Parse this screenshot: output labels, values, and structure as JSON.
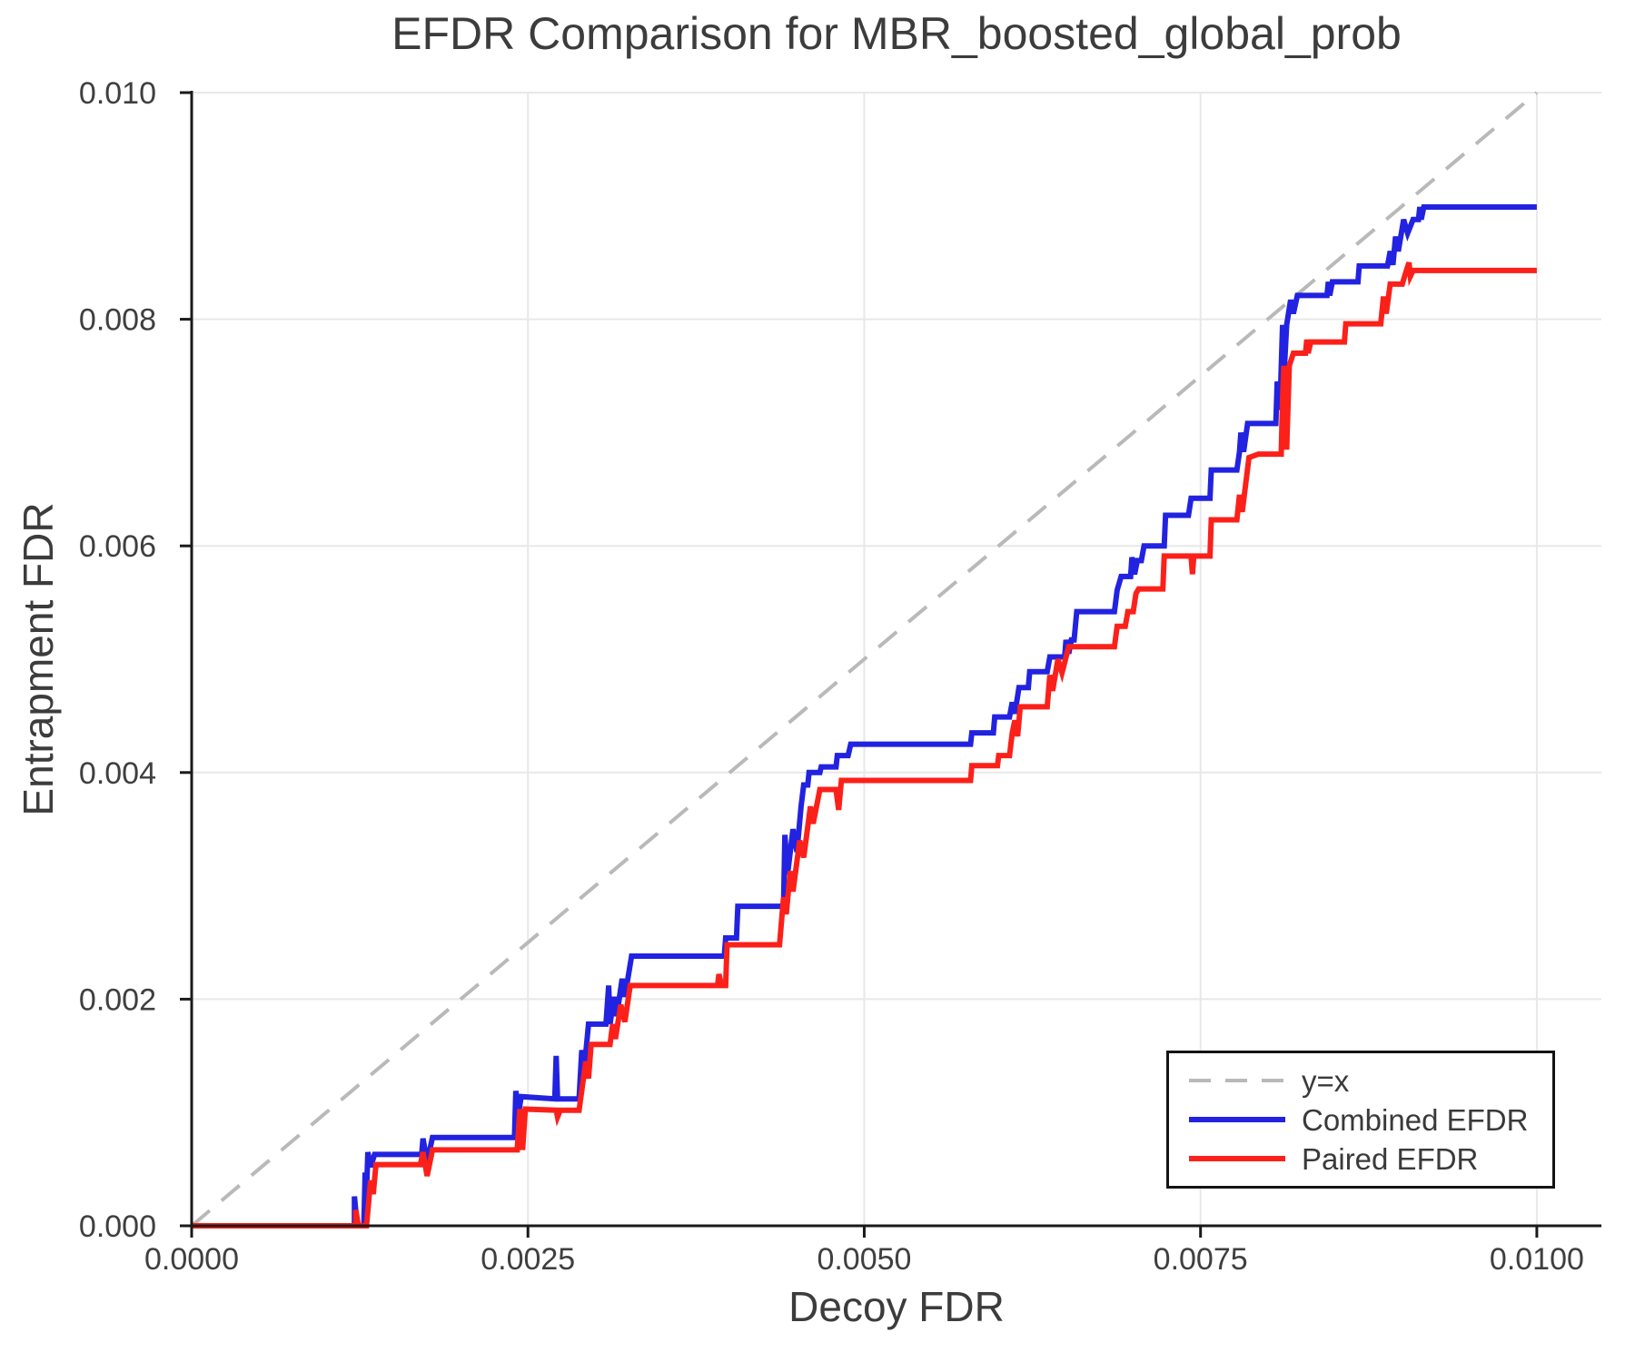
{
  "title": "EFDR Comparison for MBR_boosted_global_prob",
  "axes": {
    "xlabel": "Decoy FDR",
    "ylabel": "Entrapment FDR",
    "x_tick_labels": [
      "0.0000",
      "0.0025",
      "0.0050",
      "0.0075",
      "0.0100"
    ],
    "y_tick_labels": [
      "0.000",
      "0.002",
      "0.004",
      "0.006",
      "0.008",
      "0.010"
    ]
  },
  "legend": {
    "items": [
      {
        "label": "y=x",
        "style": "dashed",
        "color": "#b9b9b9"
      },
      {
        "label": "Combined EFDR",
        "style": "solid",
        "color": "#2222e1"
      },
      {
        "label": "Paired EFDR",
        "style": "solid",
        "color": "#fc201a"
      }
    ]
  },
  "colors": {
    "grid": "#e8e8e8",
    "spine": "#1a1a1a",
    "tick_text": "#3f3f3f",
    "diagonal": "#b9b9b9",
    "combined": "#2222e1",
    "paired": "#fc201a"
  },
  "chart_data": {
    "type": "line",
    "title": "EFDR Comparison for MBR_boosted_global_prob",
    "xlabel": "Decoy FDR",
    "ylabel": "Entrapment FDR",
    "value_unit": "1e-4 FDR (multiply plotted values by 0.0001)",
    "xlim": [
      0,
      104.8
    ],
    "ylim": [
      0,
      100
    ],
    "x_ticks": {
      "values": [
        0,
        25,
        50,
        75,
        100
      ],
      "labels": [
        "0.0000",
        "0.0025",
        "0.0050",
        "0.0075",
        "0.0100"
      ]
    },
    "y_ticks": {
      "values": [
        0,
        20,
        40,
        60,
        80,
        100
      ],
      "labels": [
        "0.000",
        "0.002",
        "0.004",
        "0.006",
        "0.008",
        "0.010"
      ]
    },
    "x_gridlines": [
      25,
      50,
      75,
      100
    ],
    "y_gridlines": [
      20,
      40,
      60,
      80,
      100
    ],
    "grid": true,
    "legend_position": "lower right",
    "series": [
      {
        "name": "y=x",
        "color": "#b9b9b9",
        "dash": true,
        "width": 4,
        "points": [
          [
            0,
            0
          ],
          [
            100,
            100
          ]
        ]
      },
      {
        "name": "Combined EFDR",
        "color": "#2222e1",
        "dash": false,
        "width": 6,
        "points": [
          [
            0,
            0
          ],
          [
            12.1,
            0
          ],
          [
            12.1,
            2.6
          ],
          [
            12.3,
            0
          ],
          [
            12.8,
            0
          ],
          [
            12.9,
            4.7
          ],
          [
            13.0,
            3.0
          ],
          [
            13.1,
            6.5
          ],
          [
            13.3,
            5.2
          ],
          [
            13.6,
            6.3
          ],
          [
            17.1,
            6.3
          ],
          [
            17.2,
            7.7
          ],
          [
            17.5,
            5.6
          ],
          [
            17.9,
            7.8
          ],
          [
            24.0,
            7.8
          ],
          [
            24.1,
            11.9
          ],
          [
            24.3,
            9.9
          ],
          [
            24.5,
            11.4
          ],
          [
            27.0,
            11.2
          ],
          [
            27.1,
            15.0
          ],
          [
            27.2,
            11.2
          ],
          [
            28.8,
            11.2
          ],
          [
            29.0,
            15.5
          ],
          [
            29.2,
            14.0
          ],
          [
            29.5,
            17.8
          ],
          [
            30.8,
            17.8
          ],
          [
            31.0,
            21.2
          ],
          [
            31.1,
            17.8
          ],
          [
            31.4,
            20.2
          ],
          [
            31.6,
            18.5
          ],
          [
            32.0,
            21.8
          ],
          [
            32.2,
            20.2
          ],
          [
            32.7,
            23.8
          ],
          [
            39.6,
            23.8
          ],
          [
            39.7,
            25.4
          ],
          [
            40.5,
            25.4
          ],
          [
            40.6,
            28.2
          ],
          [
            44.0,
            28.2
          ],
          [
            44.1,
            34.5
          ],
          [
            44.3,
            31.0
          ],
          [
            44.7,
            35.0
          ],
          [
            45.0,
            33.0
          ],
          [
            45.3,
            37.0
          ],
          [
            45.5,
            38.9
          ],
          [
            45.8,
            38.9
          ],
          [
            45.9,
            40.0
          ],
          [
            46.7,
            40.0
          ],
          [
            46.8,
            40.5
          ],
          [
            47.9,
            40.5
          ],
          [
            48.0,
            41.5
          ],
          [
            48.8,
            41.5
          ],
          [
            49.0,
            42.5
          ],
          [
            57.9,
            42.5
          ],
          [
            58.0,
            43.5
          ],
          [
            59.6,
            43.5
          ],
          [
            59.7,
            44.9
          ],
          [
            60.8,
            44.9
          ],
          [
            61.0,
            46.2
          ],
          [
            61.2,
            45.2
          ],
          [
            61.5,
            47.5
          ],
          [
            62.2,
            47.5
          ],
          [
            62.3,
            48.9
          ],
          [
            63.6,
            48.9
          ],
          [
            63.8,
            50.2
          ],
          [
            64.9,
            50.2
          ],
          [
            65.0,
            51.7
          ],
          [
            65.2,
            50.5
          ],
          [
            65.4,
            51.7
          ],
          [
            65.6,
            51.7
          ],
          [
            65.8,
            54.2
          ],
          [
            68.6,
            54.2
          ],
          [
            68.8,
            56.1
          ],
          [
            69.1,
            57.3
          ],
          [
            69.8,
            57.3
          ],
          [
            69.9,
            59.0
          ],
          [
            70.1,
            57.5
          ],
          [
            70.3,
            58.7
          ],
          [
            70.6,
            58.7
          ],
          [
            70.8,
            60.0
          ],
          [
            72.3,
            60.0
          ],
          [
            72.4,
            62.7
          ],
          [
            74.1,
            62.7
          ],
          [
            74.3,
            64.2
          ],
          [
            75.7,
            64.2
          ],
          [
            75.8,
            66.7
          ],
          [
            77.7,
            66.7
          ],
          [
            77.9,
            68.3
          ],
          [
            78.0,
            70.0
          ],
          [
            78.2,
            68.3
          ],
          [
            78.5,
            70.8
          ],
          [
            80.6,
            70.8
          ],
          [
            80.7,
            74.5
          ],
          [
            80.9,
            72.0
          ],
          [
            81.1,
            79.5
          ],
          [
            81.2,
            74.9
          ],
          [
            81.4,
            79.5
          ],
          [
            81.7,
            81.7
          ],
          [
            81.9,
            80.5
          ],
          [
            82.2,
            82.1
          ],
          [
            84.4,
            82.1
          ],
          [
            84.5,
            83.3
          ],
          [
            84.6,
            82.1
          ],
          [
            84.8,
            83.3
          ],
          [
            86.7,
            83.3
          ],
          [
            86.8,
            84.7
          ],
          [
            88.9,
            84.7
          ],
          [
            89.1,
            86.0
          ],
          [
            89.3,
            84.8
          ],
          [
            89.5,
            87.3
          ],
          [
            89.7,
            86.0
          ],
          [
            90.1,
            88.8
          ],
          [
            90.4,
            87.6
          ],
          [
            90.8,
            88.8
          ],
          [
            91.2,
            88.8
          ],
          [
            91.3,
            89.9
          ],
          [
            91.4,
            88.8
          ],
          [
            91.6,
            89.9
          ],
          [
            100,
            89.9
          ]
        ]
      },
      {
        "name": "Paired EFDR",
        "color": "#fc201a",
        "dash": false,
        "width": 6,
        "points": [
          [
            0,
            0
          ],
          [
            12.2,
            0
          ],
          [
            12.2,
            1.4
          ],
          [
            12.4,
            0
          ],
          [
            13.0,
            0
          ],
          [
            13.3,
            4.0
          ],
          [
            13.5,
            2.8
          ],
          [
            13.7,
            5.4
          ],
          [
            17.0,
            5.4
          ],
          [
            17.2,
            6.5
          ],
          [
            17.5,
            4.4
          ],
          [
            17.9,
            6.7
          ],
          [
            24.2,
            6.7
          ],
          [
            24.4,
            10.3
          ],
          [
            24.6,
            6.7
          ],
          [
            24.8,
            10.3
          ],
          [
            27.1,
            10.2
          ],
          [
            27.2,
            9.6
          ],
          [
            27.4,
            10.2
          ],
          [
            28.8,
            10.2
          ],
          [
            29.3,
            14.5
          ],
          [
            29.5,
            13.0
          ],
          [
            29.7,
            16.0
          ],
          [
            31.1,
            16.0
          ],
          [
            31.3,
            17.8
          ],
          [
            31.5,
            16.5
          ],
          [
            31.9,
            19.5
          ],
          [
            32.2,
            18.0
          ],
          [
            32.6,
            21.2
          ],
          [
            39.1,
            21.2
          ],
          [
            39.2,
            22.2
          ],
          [
            39.4,
            21.2
          ],
          [
            39.7,
            21.2
          ],
          [
            39.8,
            24.8
          ],
          [
            43.7,
            24.8
          ],
          [
            44.0,
            29.0
          ],
          [
            44.2,
            27.5
          ],
          [
            44.5,
            31.3
          ],
          [
            44.7,
            29.5
          ],
          [
            45.2,
            34.0
          ],
          [
            45.5,
            32.5
          ],
          [
            46.0,
            37.0
          ],
          [
            46.2,
            35.5
          ],
          [
            46.7,
            38.5
          ],
          [
            47.9,
            38.5
          ],
          [
            48.1,
            36.7
          ],
          [
            48.3,
            39.3
          ],
          [
            57.9,
            39.3
          ],
          [
            58.0,
            40.6
          ],
          [
            59.9,
            40.6
          ],
          [
            60.0,
            41.5
          ],
          [
            60.8,
            41.5
          ],
          [
            61.0,
            43.5
          ],
          [
            61.2,
            44.6
          ],
          [
            61.4,
            43.2
          ],
          [
            61.6,
            45.8
          ],
          [
            63.6,
            45.8
          ],
          [
            63.8,
            48.6
          ],
          [
            64.0,
            47.2
          ],
          [
            64.4,
            50.0
          ],
          [
            64.7,
            48.8
          ],
          [
            65.2,
            51.1
          ],
          [
            68.6,
            51.1
          ],
          [
            68.8,
            52.9
          ],
          [
            69.4,
            52.9
          ],
          [
            69.6,
            54.2
          ],
          [
            70.0,
            54.2
          ],
          [
            70.2,
            55.8
          ],
          [
            70.4,
            56.2
          ],
          [
            72.2,
            56.2
          ],
          [
            72.3,
            59.1
          ],
          [
            74.3,
            59.1
          ],
          [
            74.4,
            57.5
          ],
          [
            74.5,
            59.1
          ],
          [
            75.7,
            59.1
          ],
          [
            75.8,
            62.3
          ],
          [
            77.7,
            62.3
          ],
          [
            77.9,
            64.5
          ],
          [
            78.1,
            63.0
          ],
          [
            78.6,
            67.8
          ],
          [
            79.3,
            68.1
          ],
          [
            81.0,
            68.1
          ],
          [
            81.1,
            73.0
          ],
          [
            81.2,
            75.9
          ],
          [
            81.4,
            68.5
          ],
          [
            81.6,
            75.9
          ],
          [
            81.9,
            77.0
          ],
          [
            82.8,
            77.0
          ],
          [
            82.9,
            78.2
          ],
          [
            83.0,
            77.0
          ],
          [
            83.2,
            78.0
          ],
          [
            85.7,
            78.0
          ],
          [
            85.8,
            79.6
          ],
          [
            88.4,
            79.6
          ],
          [
            88.6,
            82.0
          ],
          [
            88.8,
            80.5
          ],
          [
            89.1,
            83.1
          ],
          [
            90.0,
            83.1
          ],
          [
            90.3,
            84.3
          ],
          [
            90.5,
            85.0
          ],
          [
            90.6,
            83.8
          ],
          [
            90.8,
            84.3
          ],
          [
            100,
            84.3
          ]
        ]
      }
    ]
  }
}
